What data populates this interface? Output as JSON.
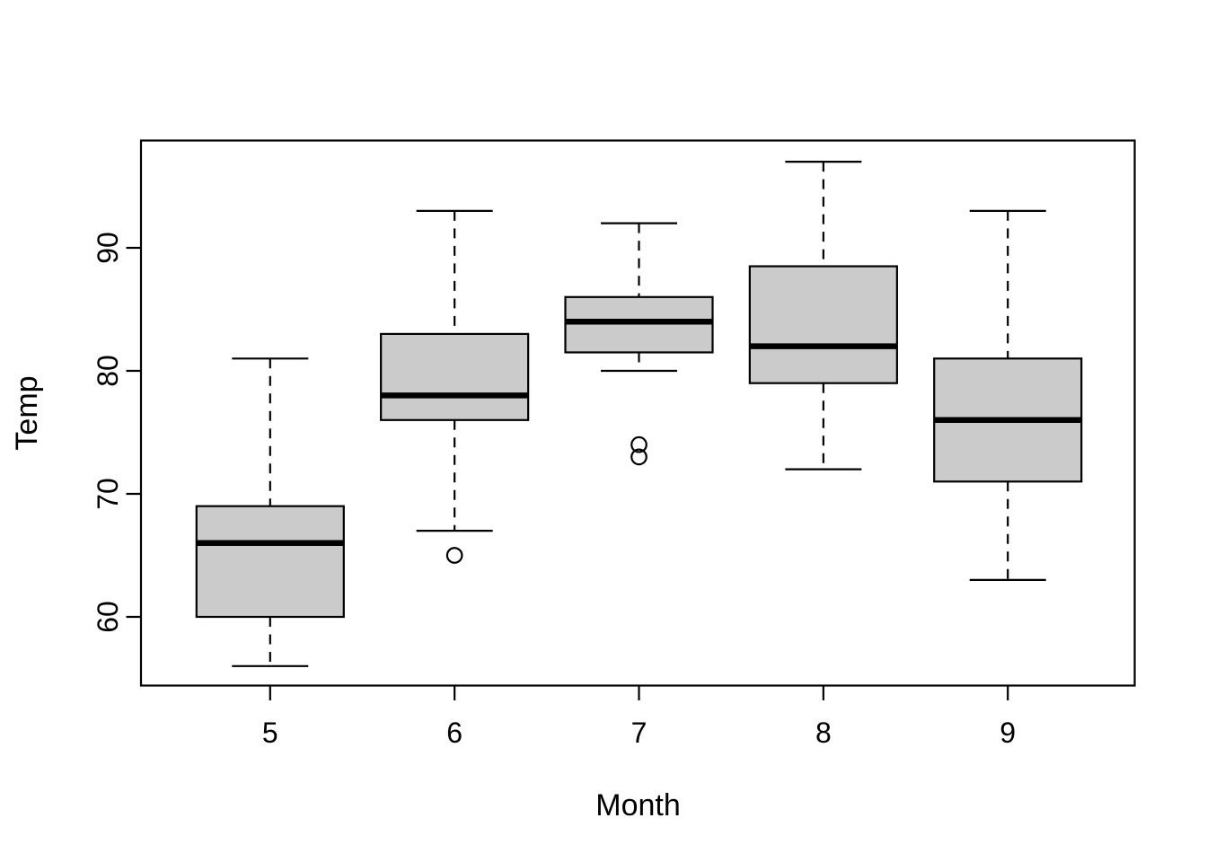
{
  "chart_data": {
    "type": "boxplot",
    "title": "",
    "xlabel": "Month",
    "ylabel": "Temp",
    "categories": [
      "5",
      "6",
      "7",
      "8",
      "9"
    ],
    "y_tick_values": [
      60,
      70,
      80,
      90
    ],
    "y_tick_labels": [
      "60",
      "70",
      "80",
      "90"
    ],
    "ylim": [
      54.4,
      98.6
    ],
    "grid": false,
    "legend": false,
    "orientation": "vertical",
    "series": [
      {
        "category": "5",
        "lower_whisker": 56,
        "q1": 60,
        "median": 66,
        "q3": 69,
        "upper_whisker": 81,
        "outliers": []
      },
      {
        "category": "6",
        "lower_whisker": 67,
        "q1": 76,
        "median": 78,
        "q3": 83,
        "upper_whisker": 93,
        "outliers": [
          65
        ]
      },
      {
        "category": "7",
        "lower_whisker": 80,
        "q1": 81.5,
        "median": 84,
        "q3": 86,
        "upper_whisker": 92,
        "outliers": [
          74,
          73
        ]
      },
      {
        "category": "8",
        "lower_whisker": 72,
        "q1": 79,
        "median": 82,
        "q3": 88.5,
        "upper_whisker": 97,
        "outliers": []
      },
      {
        "category": "9",
        "lower_whisker": 63,
        "q1": 71,
        "median": 76,
        "q3": 81,
        "upper_whisker": 93,
        "outliers": []
      }
    ],
    "colors": {
      "box_fill": "#cbcbcb",
      "line": "#000000",
      "background": "#ffffff"
    }
  }
}
